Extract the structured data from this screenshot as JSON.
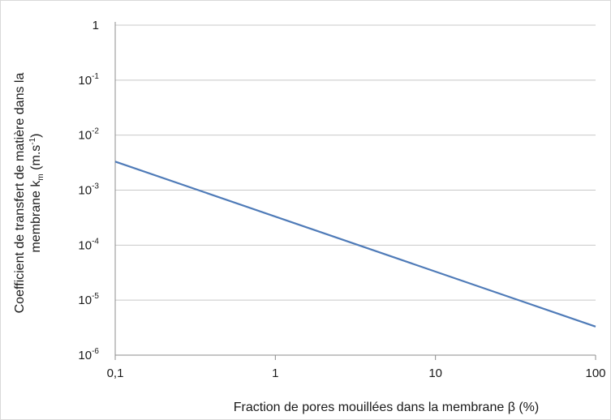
{
  "chart_data": {
    "type": "line",
    "title": "",
    "xlabel": "Fraction de pores mouillées dans la membrane  β (%)",
    "ylabel_line1": "Coefficient de transfert de matière dans la",
    "ylabel_line2_prefix": "membrane k",
    "ylabel_line2_subscript": "m",
    "ylabel_line2_unit_prefix": " (m.s",
    "ylabel_line2_unit_sup": "-1",
    "ylabel_line2_unit_suffix": ")",
    "x_scale": "log",
    "y_scale": "log",
    "xlim": [
      0.1,
      100
    ],
    "ylim": [
      1e-06,
      1
    ],
    "x_ticks": [
      {
        "value": 0.1,
        "label": "0,1"
      },
      {
        "value": 1,
        "label": "1"
      },
      {
        "value": 10,
        "label": "10"
      },
      {
        "value": 100,
        "label": "100"
      }
    ],
    "y_ticks": [
      {
        "value": 1,
        "base": "1",
        "exp": ""
      },
      {
        "value": 0.1,
        "base": "10",
        "exp": "-1"
      },
      {
        "value": 0.01,
        "base": "10",
        "exp": "-2"
      },
      {
        "value": 0.001,
        "base": "10",
        "exp": "-3"
      },
      {
        "value": 0.0001,
        "base": "10",
        "exp": "-4"
      },
      {
        "value": 1e-05,
        "base": "10",
        "exp": "-5"
      },
      {
        "value": 1e-06,
        "base": "10",
        "exp": "-6"
      }
    ],
    "grid": {
      "horizontal": true,
      "vertical": false
    },
    "series": [
      {
        "color": "#4f7bb8",
        "x": [
          0.1,
          100
        ],
        "y": [
          0.0033,
          3.3e-06
        ]
      }
    ]
  }
}
